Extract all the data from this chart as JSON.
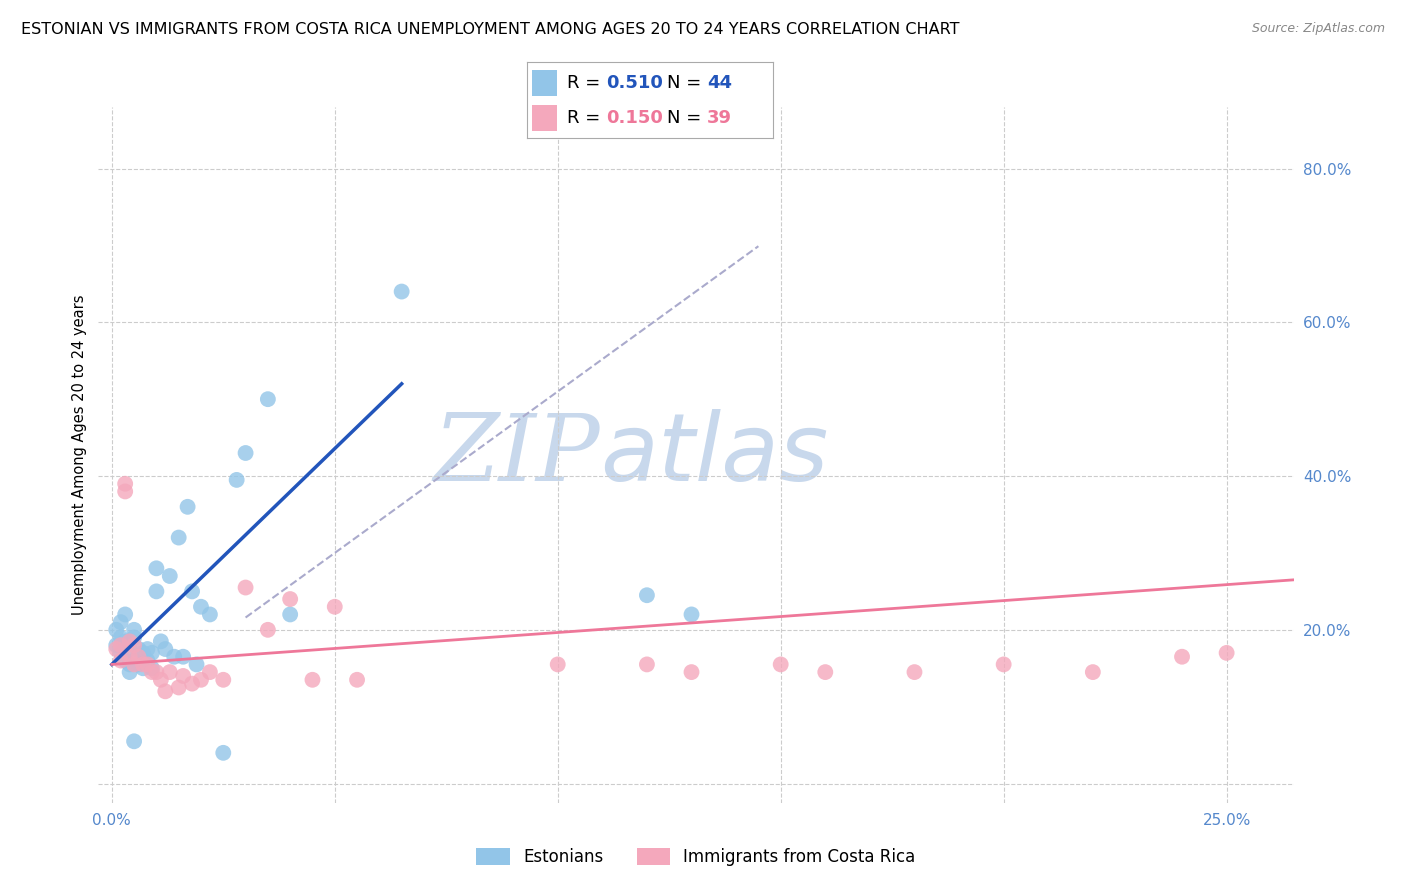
{
  "title": "ESTONIAN VS IMMIGRANTS FROM COSTA RICA UNEMPLOYMENT AMONG AGES 20 TO 24 YEARS CORRELATION CHART",
  "source": "Source: ZipAtlas.com",
  "ylabel": "Unemployment Among Ages 20 to 24 years",
  "x_min": -0.003,
  "x_max": 0.265,
  "y_min": -0.025,
  "y_max": 0.88,
  "x_ticks": [
    0.0,
    0.05,
    0.1,
    0.15,
    0.2,
    0.25
  ],
  "x_tick_labels": [
    "0.0%",
    "",
    "",
    "",
    "",
    "25.0%"
  ],
  "y_ticks_right": [
    0.0,
    0.2,
    0.4,
    0.6,
    0.8
  ],
  "y_tick_labels_right": [
    "",
    "20.0%",
    "40.0%",
    "60.0%",
    "80.0%"
  ],
  "background_color": "#ffffff",
  "grid_color": "#cccccc",
  "watermark_zip": "ZIP",
  "watermark_atlas": "atlas",
  "watermark_color_zip": "#c8d8ec",
  "watermark_color_atlas": "#c8d8ec",
  "estonian_color": "#92c5e8",
  "costarica_color": "#f4a8bc",
  "estonian_line_color": "#2255bb",
  "costarica_line_color": "#ee7799",
  "ref_line_color": "#aaaacc",
  "legend_label1": "Estonians",
  "legend_label2": "Immigrants from Costa Rica",
  "title_fontsize": 11.5,
  "axis_label_fontsize": 10.5,
  "tick_fontsize": 11,
  "legend_fontsize": 13,
  "estonian_x": [
    0.001,
    0.001,
    0.002,
    0.002,
    0.002,
    0.003,
    0.003,
    0.003,
    0.004,
    0.004,
    0.004,
    0.005,
    0.005,
    0.005,
    0.006,
    0.006,
    0.007,
    0.007,
    0.008,
    0.008,
    0.009,
    0.009,
    0.01,
    0.01,
    0.011,
    0.012,
    0.013,
    0.014,
    0.015,
    0.016,
    0.017,
    0.018,
    0.019,
    0.02,
    0.022,
    0.025,
    0.028,
    0.03,
    0.035,
    0.04,
    0.065,
    0.12,
    0.13,
    0.005
  ],
  "estonian_y": [
    0.2,
    0.18,
    0.21,
    0.19,
    0.17,
    0.22,
    0.185,
    0.16,
    0.175,
    0.155,
    0.145,
    0.2,
    0.19,
    0.16,
    0.175,
    0.155,
    0.17,
    0.15,
    0.175,
    0.16,
    0.17,
    0.15,
    0.28,
    0.25,
    0.185,
    0.175,
    0.27,
    0.165,
    0.32,
    0.165,
    0.36,
    0.25,
    0.155,
    0.23,
    0.22,
    0.04,
    0.395,
    0.43,
    0.5,
    0.22,
    0.64,
    0.245,
    0.22,
    0.055
  ],
  "costarica_x": [
    0.001,
    0.002,
    0.002,
    0.003,
    0.003,
    0.004,
    0.004,
    0.005,
    0.005,
    0.006,
    0.007,
    0.008,
    0.009,
    0.01,
    0.011,
    0.012,
    0.013,
    0.015,
    0.016,
    0.018,
    0.02,
    0.022,
    0.025,
    0.03,
    0.035,
    0.04,
    0.045,
    0.05,
    0.055,
    0.1,
    0.12,
    0.13,
    0.15,
    0.16,
    0.18,
    0.2,
    0.22,
    0.24,
    0.25
  ],
  "costarica_y": [
    0.175,
    0.18,
    0.16,
    0.39,
    0.38,
    0.185,
    0.165,
    0.18,
    0.155,
    0.165,
    0.155,
    0.155,
    0.145,
    0.145,
    0.135,
    0.12,
    0.145,
    0.125,
    0.14,
    0.13,
    0.135,
    0.145,
    0.135,
    0.255,
    0.2,
    0.24,
    0.135,
    0.23,
    0.135,
    0.155,
    0.155,
    0.145,
    0.155,
    0.145,
    0.145,
    0.155,
    0.145,
    0.165,
    0.17
  ]
}
